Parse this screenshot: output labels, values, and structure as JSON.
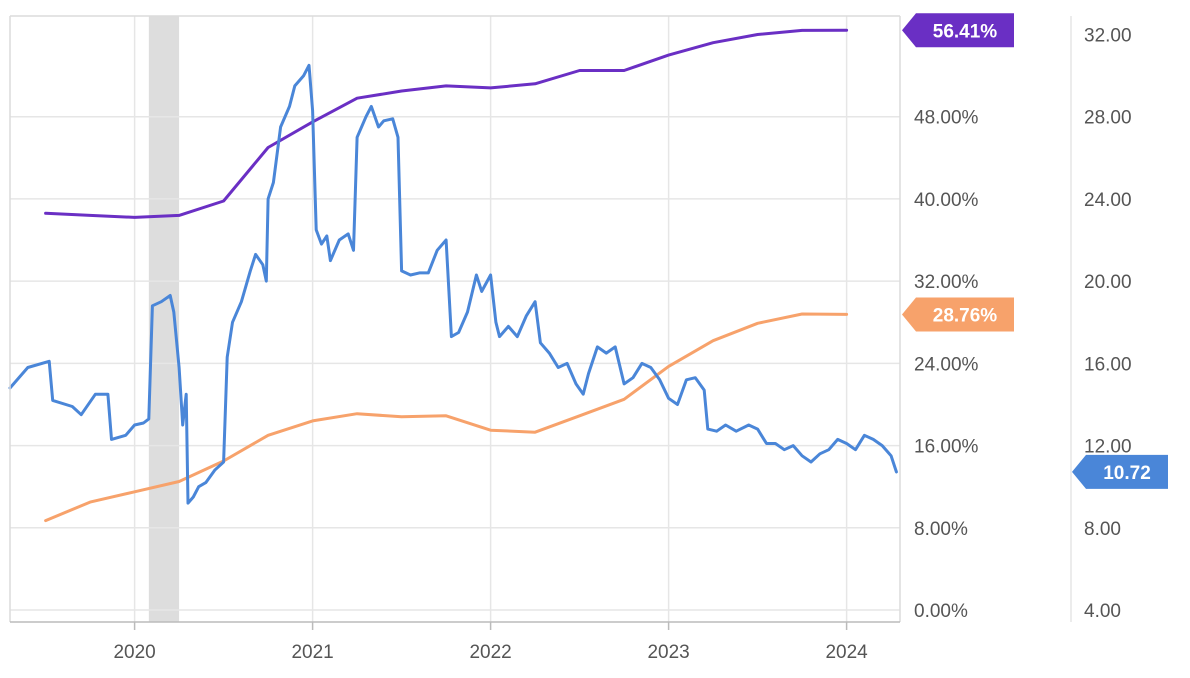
{
  "chart_data": {
    "type": "line",
    "title": "",
    "xlabel": "",
    "x_ticks": [
      "2020",
      "2021",
      "2022",
      "2023",
      "2024"
    ],
    "x_range": [
      2019.3,
      2024.3
    ],
    "y_left": {
      "ticks": [
        "0.00%",
        "8.00%",
        "16.00%",
        "24.00%",
        "32.00%",
        "40.00%",
        "48.00%"
      ],
      "range": [
        0,
        56
      ]
    },
    "y_right": {
      "ticks": [
        "4.00",
        "8.00",
        "12.00",
        "16.00",
        "20.00",
        "24.00",
        "28.00",
        "32.00"
      ],
      "range": [
        4,
        32
      ]
    },
    "grid": true,
    "legend": "none",
    "shaded_period": {
      "start": 2020.08,
      "end": 2020.25,
      "color": "#dddddd"
    },
    "series": [
      {
        "axis": "left",
        "color": "#6a2fc4",
        "last_value_label": "56.41%",
        "points": [
          [
            2019.5,
            38.6
          ],
          [
            2019.75,
            38.4
          ],
          [
            2020.0,
            38.2
          ],
          [
            2020.25,
            38.4
          ],
          [
            2020.5,
            39.8
          ],
          [
            2020.75,
            45.0
          ],
          [
            2021.0,
            47.5
          ],
          [
            2021.25,
            49.8
          ],
          [
            2021.5,
            50.5
          ],
          [
            2021.75,
            51.0
          ],
          [
            2022.0,
            50.8
          ],
          [
            2022.25,
            51.2
          ],
          [
            2022.5,
            52.5
          ],
          [
            2022.75,
            52.5
          ],
          [
            2023.0,
            54.0
          ],
          [
            2023.25,
            55.2
          ],
          [
            2023.5,
            56.0
          ],
          [
            2023.75,
            56.4
          ],
          [
            2024.0,
            56.41
          ]
        ]
      },
      {
        "axis": "left",
        "color": "#f7a26b",
        "last_value_label": "28.76%",
        "points": [
          [
            2019.5,
            8.7
          ],
          [
            2019.75,
            10.5
          ],
          [
            2020.0,
            11.5
          ],
          [
            2020.25,
            12.5
          ],
          [
            2020.5,
            14.5
          ],
          [
            2020.75,
            17.0
          ],
          [
            2021.0,
            18.4
          ],
          [
            2021.25,
            19.1
          ],
          [
            2021.5,
            18.8
          ],
          [
            2021.75,
            18.9
          ],
          [
            2022.0,
            17.5
          ],
          [
            2022.25,
            17.3
          ],
          [
            2022.5,
            18.9
          ],
          [
            2022.75,
            20.5
          ],
          [
            2023.0,
            23.7
          ],
          [
            2023.25,
            26.2
          ],
          [
            2023.5,
            27.9
          ],
          [
            2023.75,
            28.8
          ],
          [
            2024.0,
            28.76
          ]
        ]
      },
      {
        "axis": "right",
        "color": "#4a86d8",
        "last_value_label": "10.72",
        "points": [
          [
            2019.3,
            14.8
          ],
          [
            2019.4,
            15.8
          ],
          [
            2019.52,
            16.1
          ],
          [
            2019.54,
            14.2
          ],
          [
            2019.65,
            13.9
          ],
          [
            2019.7,
            13.5
          ],
          [
            2019.78,
            14.5
          ],
          [
            2019.85,
            14.5
          ],
          [
            2019.87,
            12.3
          ],
          [
            2019.95,
            12.5
          ],
          [
            2020.0,
            13.0
          ],
          [
            2020.05,
            13.1
          ],
          [
            2020.08,
            13.3
          ],
          [
            2020.1,
            18.8
          ],
          [
            2020.15,
            19.0
          ],
          [
            2020.2,
            19.3
          ],
          [
            2020.22,
            18.5
          ],
          [
            2020.25,
            15.8
          ],
          [
            2020.27,
            13.0
          ],
          [
            2020.29,
            14.5
          ],
          [
            2020.3,
            9.2
          ],
          [
            2020.33,
            9.5
          ],
          [
            2020.36,
            10.0
          ],
          [
            2020.4,
            10.2
          ],
          [
            2020.45,
            10.8
          ],
          [
            2020.5,
            11.2
          ],
          [
            2020.52,
            16.3
          ],
          [
            2020.55,
            18.0
          ],
          [
            2020.6,
            19.0
          ],
          [
            2020.65,
            20.5
          ],
          [
            2020.68,
            21.3
          ],
          [
            2020.72,
            20.8
          ],
          [
            2020.74,
            20.0
          ],
          [
            2020.75,
            24.0
          ],
          [
            2020.78,
            24.8
          ],
          [
            2020.82,
            27.5
          ],
          [
            2020.87,
            28.5
          ],
          [
            2020.9,
            29.5
          ],
          [
            2020.95,
            30.0
          ],
          [
            2020.98,
            30.5
          ],
          [
            2021.0,
            28.3
          ],
          [
            2021.02,
            22.5
          ],
          [
            2021.05,
            21.8
          ],
          [
            2021.08,
            22.2
          ],
          [
            2021.1,
            21.0
          ],
          [
            2021.15,
            22.0
          ],
          [
            2021.2,
            22.3
          ],
          [
            2021.23,
            21.5
          ],
          [
            2021.25,
            27.0
          ],
          [
            2021.3,
            28.0
          ],
          [
            2021.33,
            28.5
          ],
          [
            2021.37,
            27.5
          ],
          [
            2021.4,
            27.8
          ],
          [
            2021.45,
            27.9
          ],
          [
            2021.48,
            27.0
          ],
          [
            2021.5,
            20.5
          ],
          [
            2021.55,
            20.3
          ],
          [
            2021.6,
            20.4
          ],
          [
            2021.65,
            20.4
          ],
          [
            2021.7,
            21.5
          ],
          [
            2021.75,
            22.0
          ],
          [
            2021.78,
            17.3
          ],
          [
            2021.82,
            17.5
          ],
          [
            2021.87,
            18.5
          ],
          [
            2021.92,
            20.3
          ],
          [
            2021.95,
            19.5
          ],
          [
            2022.0,
            20.3
          ],
          [
            2022.03,
            18.0
          ],
          [
            2022.05,
            17.3
          ],
          [
            2022.1,
            17.8
          ],
          [
            2022.15,
            17.3
          ],
          [
            2022.2,
            18.3
          ],
          [
            2022.25,
            19.0
          ],
          [
            2022.28,
            17.0
          ],
          [
            2022.33,
            16.5
          ],
          [
            2022.38,
            15.8
          ],
          [
            2022.43,
            16.0
          ],
          [
            2022.48,
            15.0
          ],
          [
            2022.52,
            14.5
          ],
          [
            2022.55,
            15.5
          ],
          [
            2022.6,
            16.8
          ],
          [
            2022.65,
            16.5
          ],
          [
            2022.7,
            16.8
          ],
          [
            2022.75,
            15.0
          ],
          [
            2022.8,
            15.3
          ],
          [
            2022.85,
            16.0
          ],
          [
            2022.9,
            15.8
          ],
          [
            2022.95,
            15.2
          ],
          [
            2023.0,
            14.3
          ],
          [
            2023.05,
            14.0
          ],
          [
            2023.1,
            15.2
          ],
          [
            2023.15,
            15.3
          ],
          [
            2023.2,
            14.7
          ],
          [
            2023.22,
            12.8
          ],
          [
            2023.27,
            12.7
          ],
          [
            2023.32,
            13.0
          ],
          [
            2023.38,
            12.7
          ],
          [
            2023.45,
            13.0
          ],
          [
            2023.5,
            12.8
          ],
          [
            2023.55,
            12.1
          ],
          [
            2023.6,
            12.1
          ],
          [
            2023.65,
            11.8
          ],
          [
            2023.7,
            12.0
          ],
          [
            2023.75,
            11.5
          ],
          [
            2023.8,
            11.2
          ],
          [
            2023.85,
            11.6
          ],
          [
            2023.9,
            11.8
          ],
          [
            2023.95,
            12.3
          ],
          [
            2024.0,
            12.1
          ],
          [
            2024.05,
            11.8
          ],
          [
            2024.1,
            12.5
          ],
          [
            2024.15,
            12.3
          ],
          [
            2024.2,
            12.0
          ],
          [
            2024.25,
            11.5
          ],
          [
            2024.28,
            10.72
          ]
        ]
      }
    ]
  }
}
